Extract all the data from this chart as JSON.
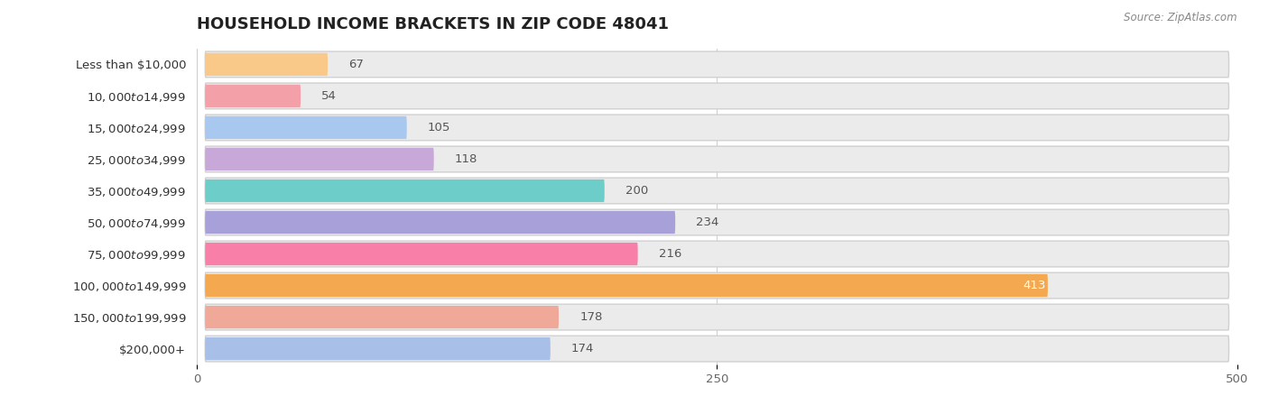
{
  "title": "Household Income Brackets in Zip Code 48041",
  "title_display": "HOUSEHOLD INCOME BRACKETS IN ZIP CODE 48041",
  "source": "Source: ZipAtlas.com",
  "categories": [
    "Less than $10,000",
    "$10,000 to $14,999",
    "$15,000 to $24,999",
    "$25,000 to $34,999",
    "$35,000 to $49,999",
    "$50,000 to $74,999",
    "$75,000 to $99,999",
    "$100,000 to $149,999",
    "$150,000 to $199,999",
    "$200,000+"
  ],
  "values": [
    67,
    54,
    105,
    118,
    200,
    234,
    216,
    413,
    178,
    174
  ],
  "bar_colors": [
    "#F9C98A",
    "#F4A0A8",
    "#A8C8F0",
    "#C8A8D8",
    "#6DCDC8",
    "#A8A0D8",
    "#F880A8",
    "#F4A850",
    "#F0A898",
    "#A8C0E8"
  ],
  "xlim": [
    0,
    500
  ],
  "xticks": [
    0,
    250,
    500
  ],
  "bg_color": "#f7f7f7",
  "bar_bg_color": "#ebebeb",
  "bar_bg_outline": "#dddddd",
  "title_fontsize": 13,
  "label_fontsize": 9.5,
  "value_fontsize": 9.5
}
